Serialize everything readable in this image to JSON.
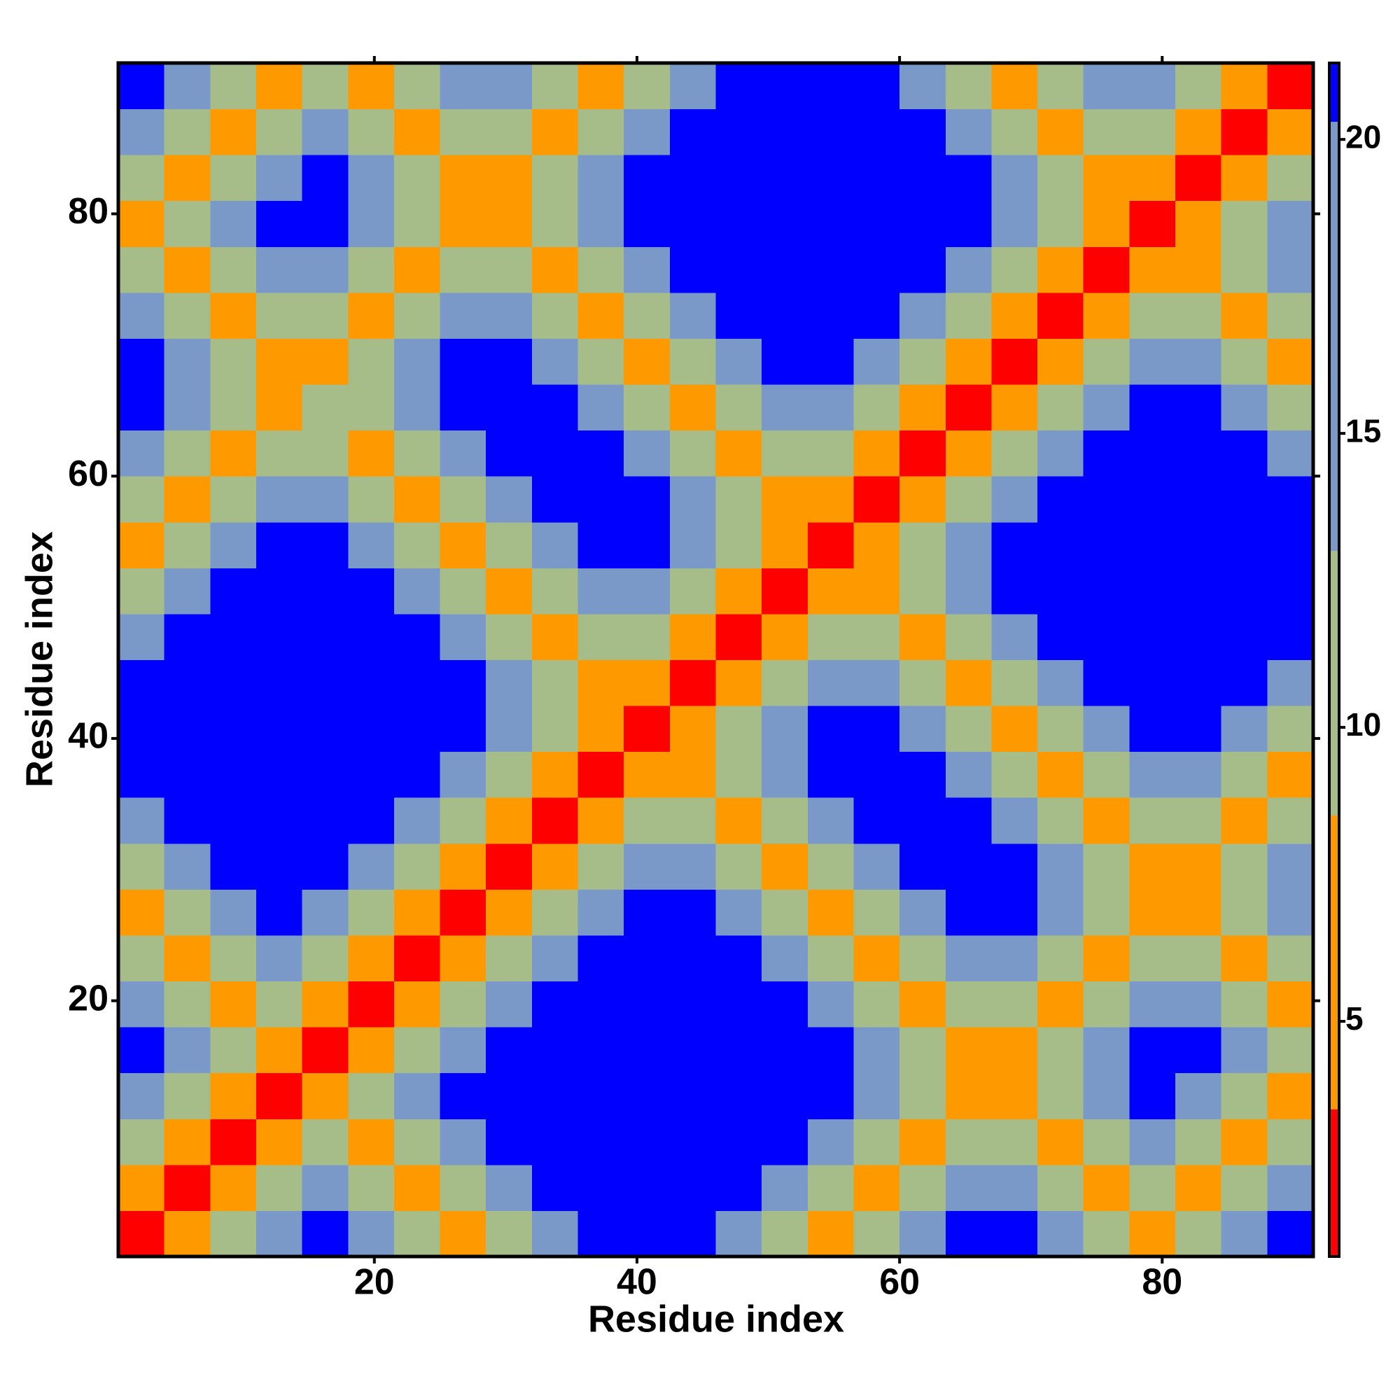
{
  "chart_data": {
    "type": "heatmap",
    "x_label": "Residue index",
    "y_label": "Residue index",
    "x": [
      2.25,
      5.75,
      9.25,
      12.75,
      16.25,
      19.75,
      23.25,
      26.75,
      30.25,
      33.75,
      37.25,
      40.75,
      44.25,
      47.75,
      51.25,
      54.75,
      58.25,
      61.75,
      65.25,
      68.75,
      72.25,
      75.75,
      79.25,
      82.75,
      86.25,
      89.75
    ],
    "y": [
      2.25,
      5.75,
      9.25,
      12.75,
      16.25,
      19.75,
      23.25,
      26.75,
      30.25,
      33.75,
      37.25,
      40.75,
      44.25,
      47.75,
      51.25,
      54.75,
      58.25,
      61.75,
      65.25,
      68.75,
      72.25,
      75.75,
      79.25,
      82.75,
      86.25,
      89.75
    ],
    "z": [
      [
        2,
        6,
        11,
        16,
        21,
        16,
        11,
        6,
        11,
        16,
        21,
        21,
        21,
        16,
        11,
        6,
        11,
        16,
        21,
        21,
        16,
        11,
        6,
        11,
        16,
        21
      ],
      [
        6,
        2,
        6,
        11,
        16,
        11,
        6,
        11,
        16,
        21,
        21,
        21,
        21,
        21,
        16,
        11,
        6,
        11,
        16,
        16,
        11,
        6,
        11,
        6,
        11,
        16
      ],
      [
        11,
        6,
        2,
        6,
        11,
        6,
        11,
        16,
        21,
        21,
        21,
        21,
        21,
        21,
        21,
        16,
        11,
        6,
        11,
        11,
        6,
        11,
        16,
        11,
        6,
        11
      ],
      [
        16,
        11,
        6,
        2,
        6,
        11,
        16,
        21,
        21,
        21,
        21,
        21,
        21,
        21,
        21,
        21,
        16,
        11,
        6,
        6,
        11,
        16,
        21,
        16,
        11,
        6
      ],
      [
        21,
        16,
        11,
        6,
        2,
        6,
        11,
        16,
        21,
        21,
        21,
        21,
        21,
        21,
        21,
        21,
        16,
        11,
        6,
        6,
        11,
        16,
        21,
        21,
        16,
        11
      ],
      [
        16,
        11,
        6,
        11,
        6,
        2,
        6,
        11,
        16,
        21,
        21,
        21,
        21,
        21,
        21,
        16,
        11,
        6,
        11,
        11,
        6,
        11,
        16,
        16,
        11,
        6
      ],
      [
        11,
        6,
        11,
        16,
        11,
        6,
        2,
        6,
        11,
        16,
        21,
        21,
        21,
        21,
        16,
        11,
        6,
        11,
        16,
        16,
        11,
        6,
        11,
        11,
        6,
        11
      ],
      [
        6,
        11,
        16,
        21,
        16,
        11,
        6,
        2,
        6,
        11,
        16,
        21,
        21,
        16,
        11,
        6,
        11,
        16,
        21,
        21,
        16,
        11,
        6,
        6,
        11,
        16
      ],
      [
        11,
        16,
        21,
        21,
        21,
        16,
        11,
        6,
        2,
        6,
        11,
        16,
        16,
        11,
        6,
        11,
        16,
        21,
        21,
        21,
        16,
        11,
        6,
        6,
        11,
        16
      ],
      [
        16,
        21,
        21,
        21,
        21,
        21,
        16,
        11,
        6,
        2,
        6,
        11,
        11,
        6,
        11,
        16,
        21,
        21,
        21,
        16,
        11,
        6,
        11,
        11,
        6,
        11
      ],
      [
        21,
        21,
        21,
        21,
        21,
        21,
        21,
        16,
        11,
        6,
        2,
        6,
        6,
        11,
        16,
        21,
        21,
        21,
        16,
        11,
        6,
        11,
        16,
        16,
        11,
        6
      ],
      [
        21,
        21,
        21,
        21,
        21,
        21,
        21,
        21,
        16,
        11,
        6,
        2,
        6,
        11,
        16,
        21,
        21,
        16,
        11,
        6,
        11,
        16,
        21,
        21,
        16,
        11
      ],
      [
        21,
        21,
        21,
        21,
        21,
        21,
        21,
        21,
        16,
        11,
        6,
        6,
        2,
        6,
        11,
        16,
        16,
        11,
        6,
        11,
        16,
        21,
        21,
        21,
        21,
        16
      ],
      [
        16,
        21,
        21,
        21,
        21,
        21,
        21,
        16,
        11,
        6,
        11,
        11,
        6,
        2,
        6,
        11,
        11,
        6,
        11,
        16,
        21,
        21,
        21,
        21,
        21,
        21
      ],
      [
        11,
        16,
        21,
        21,
        21,
        21,
        16,
        11,
        6,
        11,
        16,
        16,
        11,
        6,
        2,
        6,
        6,
        11,
        16,
        21,
        21,
        21,
        21,
        21,
        21,
        21
      ],
      [
        6,
        11,
        16,
        21,
        21,
        16,
        11,
        6,
        11,
        16,
        21,
        21,
        16,
        11,
        6,
        2,
        6,
        11,
        16,
        21,
        21,
        21,
        21,
        21,
        21,
        21
      ],
      [
        11,
        6,
        11,
        16,
        16,
        11,
        6,
        11,
        16,
        21,
        21,
        21,
        16,
        11,
        6,
        6,
        2,
        6,
        11,
        16,
        21,
        21,
        21,
        21,
        21,
        21
      ],
      [
        16,
        11,
        6,
        11,
        11,
        6,
        11,
        16,
        21,
        21,
        21,
        16,
        11,
        6,
        11,
        11,
        6,
        2,
        6,
        11,
        16,
        21,
        21,
        21,
        21,
        16
      ],
      [
        21,
        16,
        11,
        6,
        11,
        11,
        16,
        21,
        21,
        21,
        16,
        11,
        6,
        11,
        16,
        16,
        11,
        6,
        2,
        6,
        11,
        16,
        21,
        21,
        16,
        11
      ],
      [
        21,
        16,
        11,
        6,
        6,
        11,
        16,
        21,
        21,
        16,
        11,
        6,
        11,
        16,
        21,
        21,
        16,
        11,
        6,
        2,
        6,
        11,
        16,
        16,
        11,
        6
      ],
      [
        16,
        11,
        6,
        11,
        11,
        6,
        11,
        16,
        16,
        11,
        6,
        11,
        16,
        21,
        21,
        21,
        21,
        16,
        11,
        6,
        2,
        6,
        11,
        11,
        6,
        11
      ],
      [
        11,
        6,
        11,
        16,
        16,
        11,
        6,
        11,
        11,
        6,
        11,
        16,
        21,
        21,
        21,
        21,
        21,
        21,
        16,
        11,
        6,
        2,
        6,
        6,
        11,
        16
      ],
      [
        6,
        11,
        16,
        21,
        21,
        16,
        11,
        6,
        6,
        11,
        16,
        21,
        21,
        21,
        21,
        21,
        21,
        21,
        21,
        16,
        11,
        6,
        2,
        6,
        11,
        16
      ],
      [
        11,
        6,
        11,
        16,
        21,
        16,
        11,
        6,
        6,
        11,
        16,
        21,
        21,
        21,
        21,
        21,
        21,
        21,
        21,
        16,
        11,
        6,
        6,
        2,
        6,
        11
      ],
      [
        16,
        11,
        6,
        11,
        16,
        11,
        6,
        11,
        11,
        6,
        11,
        16,
        21,
        21,
        21,
        21,
        21,
        21,
        16,
        11,
        6,
        11,
        11,
        6,
        2,
        6
      ],
      [
        21,
        16,
        11,
        6,
        11,
        6,
        11,
        16,
        16,
        11,
        6,
        11,
        16,
        21,
        21,
        21,
        21,
        16,
        11,
        6,
        11,
        16,
        16,
        11,
        6,
        2
      ]
    ],
    "xlim": [
      0.5,
      91.5
    ],
    "ylim": [
      0.5,
      91.5
    ],
    "xticks": [
      20,
      40,
      60,
      80
    ],
    "yticks": [
      20,
      40,
      60,
      80
    ],
    "colorscale": [
      {
        "from": 1,
        "to": 3.5,
        "color": "#ff0000"
      },
      {
        "from": 3.5,
        "to": 8.5,
        "color": "#ff9900"
      },
      {
        "from": 8.5,
        "to": 13,
        "color": "#a6bd8a"
      },
      {
        "from": 13,
        "to": 20.3,
        "color": "#7a99c8"
      },
      {
        "from": 20.3,
        "to": 21.3,
        "color": "#0000ff"
      }
    ],
    "colorbar_lim": [
      1,
      21.3
    ],
    "colorbar_ticks": [
      5,
      10,
      15,
      20
    ]
  }
}
